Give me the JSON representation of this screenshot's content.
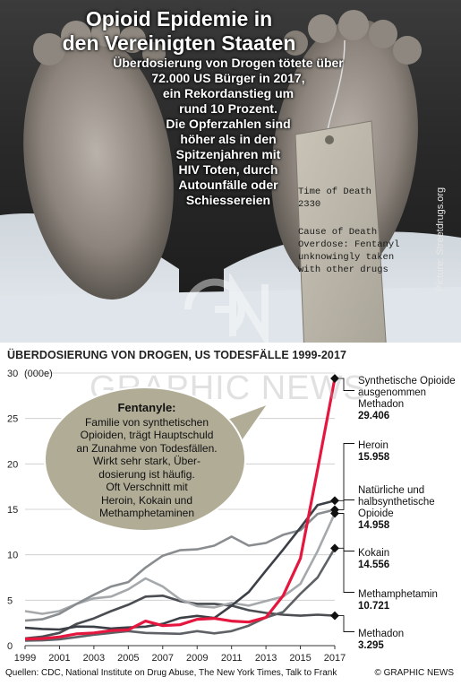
{
  "header": {
    "title_line1": "Opioid Epidemie in",
    "title_line2": "den Vereinigten Staaten",
    "lead": "Überdosierung von Drogen tötete über\n72.000 US Bürger in 2017,\nein Rekordanstieg um\nrund 10 Prozent.\nDie Opferzahlen sind\nhöher als in den\nSpitzenjahren mit\nHIV Toten, durch\nAutounfälle oder\nSchiessereien"
  },
  "photo": {
    "credit": "Picture: Streetdrugs.org",
    "tag_line1": "Time of Death\n2330",
    "tag_line2": "Cause of Death\nOverdose: Fentanyl\nunknowingly taken\nwith other drugs"
  },
  "watermark": "GRAPHIC NEWS",
  "annotation": {
    "title": "Fentanyle:",
    "body": "Familie von synthetischen\nOpioiden, trägt Hauptschuld\nan Zunahme von Todesfällen.\nWirkt sehr stark, Über-\ndosierung ist häufig.\nOft Verschnitt mit\nHeroin, Kokain und\nMethamphetaminen"
  },
  "chart_data": {
    "type": "line",
    "title": "ÜBERDOSIERUNG VON DROGEN, US TODESFÄLLE 1999-2017",
    "ylabel": "(000e)",
    "ylim": [
      0,
      30
    ],
    "yticks": [
      0,
      5,
      10,
      15,
      20,
      25,
      30
    ],
    "xlim": [
      1999,
      2017
    ],
    "xticks": [
      1999,
      2001,
      2003,
      2005,
      2007,
      2009,
      2011,
      2013,
      2015,
      2017
    ],
    "x": [
      1999,
      2000,
      2001,
      2002,
      2003,
      2004,
      2005,
      2006,
      2007,
      2008,
      2009,
      2010,
      2011,
      2012,
      2013,
      2014,
      2015,
      2016,
      2017
    ],
    "series": [
      {
        "name": "Synthetische Opioide ausgenommen Methadon",
        "value_label": "29.406",
        "color": "#e5173f",
        "values": [
          0.73,
          0.78,
          0.96,
          1.3,
          1.4,
          1.66,
          1.74,
          2.7,
          2.2,
          2.3,
          2.9,
          3.0,
          2.7,
          2.6,
          3.1,
          5.5,
          9.6,
          19.4,
          29.406
        ]
      },
      {
        "name": "Heroin",
        "value_label": "15.958",
        "color": "#3c4046",
        "values": [
          1.96,
          1.84,
          1.78,
          2.1,
          2.08,
          1.88,
          2.0,
          2.09,
          2.4,
          3.04,
          3.28,
          3.04,
          4.4,
          5.9,
          8.26,
          10.57,
          12.99,
          15.47,
          15.958
        ]
      },
      {
        "name": "Natürliche und halbsynthetische Opioide",
        "value_label": "14.958",
        "color": "#8a8d90",
        "values": [
          2.75,
          2.9,
          3.5,
          4.6,
          5.6,
          6.5,
          7.0,
          8.6,
          9.9,
          10.5,
          10.6,
          11.0,
          12.0,
          11.0,
          11.3,
          12.2,
          12.7,
          14.5,
          14.958
        ]
      },
      {
        "name": "Kokain",
        "value_label": "14.556",
        "color": "#a6a9ac",
        "values": [
          3.8,
          3.5,
          3.8,
          4.6,
          5.2,
          5.4,
          6.2,
          7.4,
          6.5,
          5.1,
          4.35,
          4.2,
          4.7,
          4.4,
          4.9,
          5.4,
          6.8,
          10.4,
          14.556
        ]
      },
      {
        "name": "Methamphetamin",
        "value_label": "10.721",
        "color": "#5e6266",
        "values": [
          0.55,
          0.58,
          0.7,
          0.95,
          1.2,
          1.4,
          1.6,
          1.4,
          1.35,
          1.3,
          1.6,
          1.35,
          1.6,
          2.2,
          3.1,
          3.7,
          5.7,
          7.5,
          10.721
        ]
      },
      {
        "name": "Methadon",
        "value_label": "3.295",
        "color": "#4a4d51",
        "values": [
          0.8,
          1.0,
          1.4,
          2.4,
          3.0,
          3.8,
          4.5,
          5.4,
          5.5,
          4.9,
          4.6,
          4.6,
          4.4,
          3.9,
          3.6,
          3.4,
          3.3,
          3.4,
          3.295
        ]
      }
    ],
    "legend_placement": "right-end"
  },
  "footer": {
    "sources": "Quellen: CDC, National Institute on Drug Abuse, The New York Times, Talk to Frank",
    "brand": "© GRAPHIC NEWS"
  }
}
